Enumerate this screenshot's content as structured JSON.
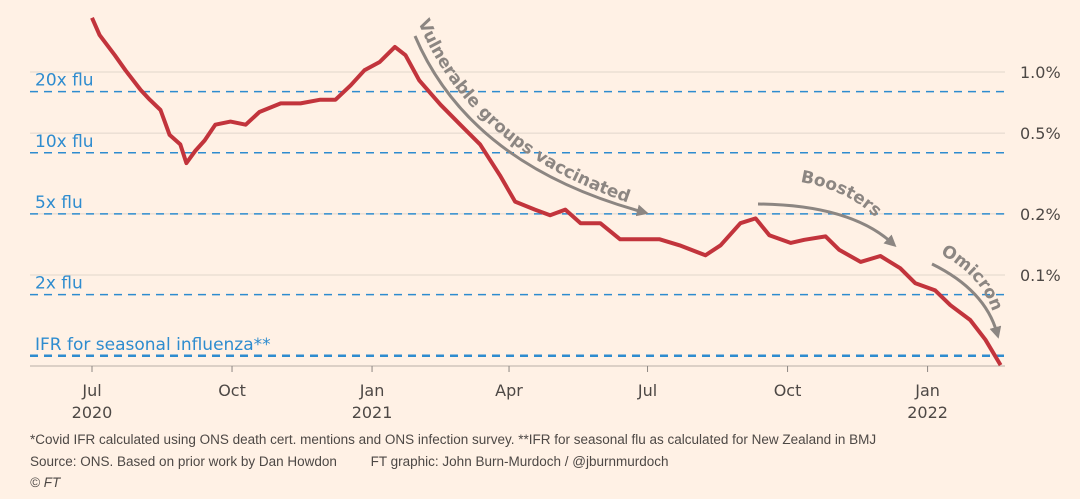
{
  "chart_data": {
    "type": "line",
    "title": "",
    "xlabel": "",
    "ylabel": "",
    "y_scale": "log",
    "ylim": [
      0.033,
      2.0
    ],
    "xlim": [
      "2020-06-15",
      "2022-02-22"
    ],
    "grid": true,
    "y_ticks": [
      {
        "value": 1.0,
        "label": "1.0%"
      },
      {
        "value": 0.5,
        "label": "0.5%"
      },
      {
        "value": 0.2,
        "label": "0.2%"
      },
      {
        "value": 0.1,
        "label": "0.1%"
      }
    ],
    "x_ticks": [
      {
        "date": "2020-07-01",
        "label": "Jul",
        "year": "2020"
      },
      {
        "date": "2020-10-01",
        "label": "Oct",
        "year": ""
      },
      {
        "date": "2021-01-01",
        "label": "Jan",
        "year": "2021"
      },
      {
        "date": "2021-04-01",
        "label": "Apr",
        "year": ""
      },
      {
        "date": "2021-07-01",
        "label": "Jul",
        "year": ""
      },
      {
        "date": "2021-10-01",
        "label": "Oct",
        "year": ""
      },
      {
        "date": "2022-01-01",
        "label": "Jan",
        "year": "2022"
      }
    ],
    "reference_lines": [
      {
        "label": "20x flu",
        "value": 0.8
      },
      {
        "label": "10x flu",
        "value": 0.4
      },
      {
        "label": "5x flu",
        "value": 0.2
      },
      {
        "label": "2x flu",
        "value": 0.08
      },
      {
        "label": "IFR for seasonal influenza**",
        "value": 0.04
      }
    ],
    "series": [
      {
        "color": "#c2343c",
        "x": [
          "2020-07-01",
          "2020-07-06",
          "2020-07-16",
          "2020-07-23",
          "2020-08-02",
          "2020-08-08",
          "2020-08-15",
          "2020-08-21",
          "2020-08-28",
          "2020-09-01",
          "2020-09-07",
          "2020-09-13",
          "2020-09-20",
          "2020-09-30",
          "2020-10-10",
          "2020-10-19",
          "2020-11-02",
          "2020-11-15",
          "2020-11-28",
          "2020-12-08",
          "2020-12-18",
          "2020-12-27",
          "2021-01-06",
          "2021-01-16",
          "2021-01-23",
          "2021-02-01",
          "2021-02-15",
          "2021-02-28",
          "2021-03-13",
          "2021-03-26",
          "2021-04-05",
          "2021-04-18",
          "2021-04-28",
          "2021-05-08",
          "2021-05-18",
          "2021-05-31",
          "2021-06-13",
          "2021-06-26",
          "2021-07-09",
          "2021-07-22",
          "2021-08-08",
          "2021-08-18",
          "2021-08-31",
          "2021-09-10",
          "2021-09-19",
          "2021-10-03",
          "2021-10-12",
          "2021-10-26",
          "2021-11-04",
          "2021-11-18",
          "2021-12-01",
          "2021-12-14",
          "2021-12-24",
          "2022-01-06",
          "2022-01-16",
          "2022-01-29",
          "2022-02-08",
          "2022-02-18"
        ],
        "values": [
          1.85,
          1.52,
          1.21,
          1.02,
          0.815,
          0.73,
          0.65,
          0.49,
          0.44,
          0.356,
          0.41,
          0.46,
          0.55,
          0.57,
          0.55,
          0.635,
          0.7,
          0.7,
          0.73,
          0.73,
          0.86,
          1.02,
          1.12,
          1.33,
          1.21,
          0.91,
          0.69,
          0.55,
          0.44,
          0.31,
          0.23,
          0.21,
          0.197,
          0.21,
          0.18,
          0.18,
          0.15,
          0.15,
          0.15,
          0.14,
          0.125,
          0.14,
          0.18,
          0.19,
          0.157,
          0.144,
          0.149,
          0.155,
          0.133,
          0.116,
          0.124,
          0.108,
          0.091,
          0.084,
          0.071,
          0.06,
          0.048,
          0.036
        ]
      }
    ],
    "annotations": [
      {
        "text": "Vulnerable groups vaccinated"
      },
      {
        "text": "Boosters"
      },
      {
        "text": "Omicron"
      }
    ]
  },
  "footer": {
    "note": "*Covid IFR calculated using ONS death cert. mentions and ONS infection survey. **IFR for seasonal flu as calculated for New Zealand in BMJ",
    "source": "Source: ONS. Based on prior work by Dan Howdon         FT graphic: John Burn-Murdoch / @jburnmurdoch",
    "copyright": "© FT"
  },
  "colors": {
    "background": "#fff1e5",
    "line": "#c2343c",
    "flu": "#2e8ccf",
    "grid": "#e0d6cc",
    "annotation": "#8c8682"
  }
}
